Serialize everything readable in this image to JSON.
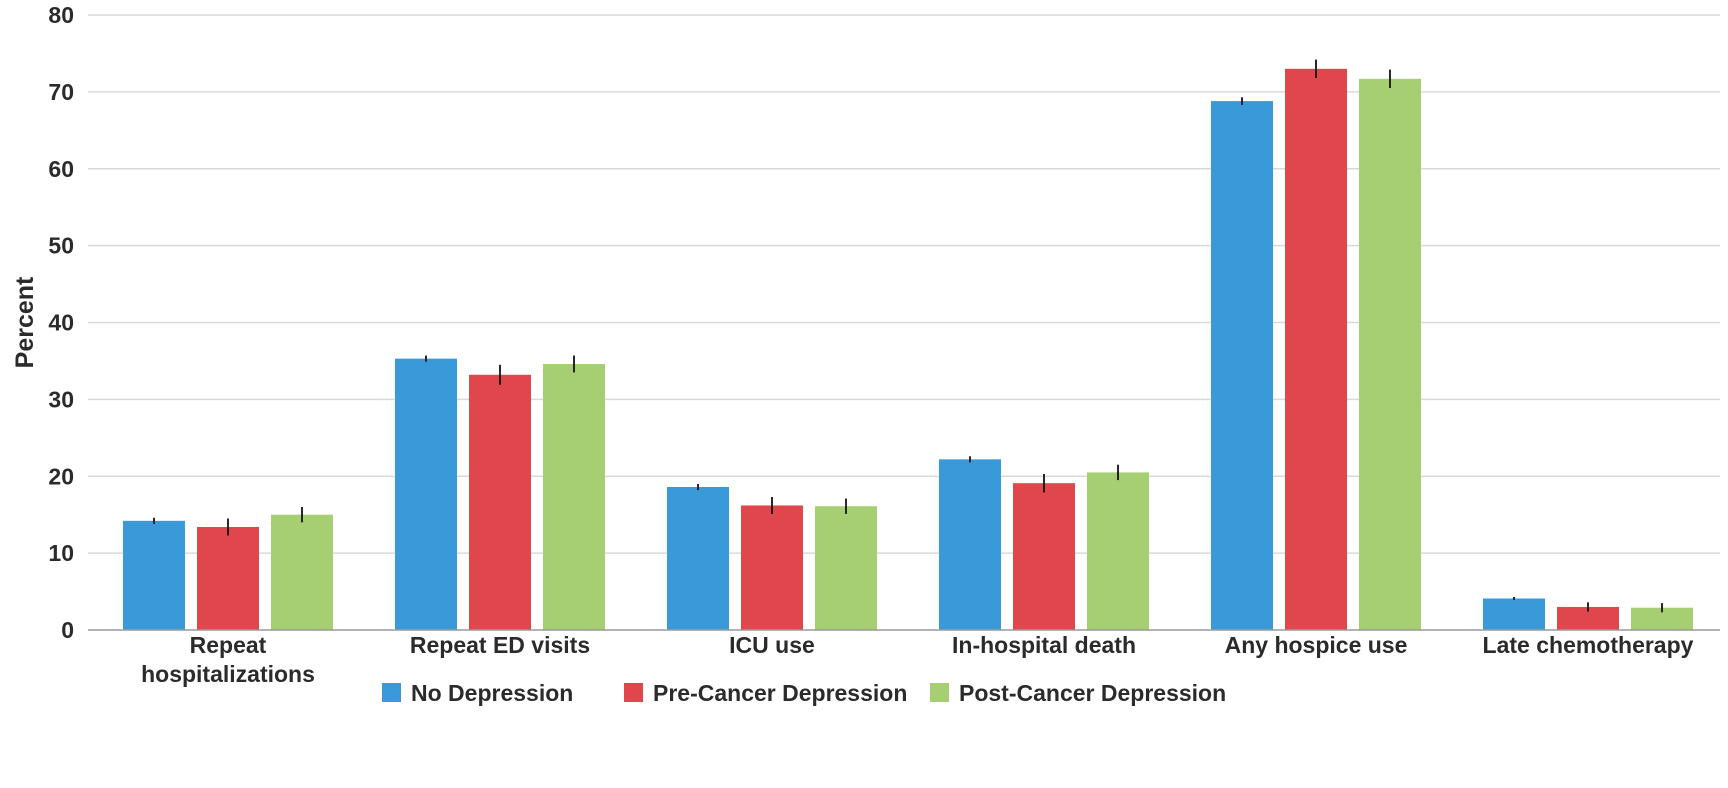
{
  "chart_data": {
    "type": "bar",
    "ylabel": "Percent",
    "xlabel": "",
    "ylim": [
      0,
      80
    ],
    "yticks": [
      0,
      10,
      20,
      30,
      40,
      50,
      60,
      70,
      80
    ],
    "grid": true,
    "legend_position": "bottom",
    "categories": [
      [
        "Repeat",
        "hospitalizations"
      ],
      [
        "Repeat ED visits"
      ],
      [
        "ICU use"
      ],
      [
        "In-hospital death"
      ],
      [
        "Any hospice use"
      ],
      [
        "Late chemotherapy"
      ]
    ],
    "series": [
      {
        "name": "No Depression",
        "color": "#3a9ad9",
        "values": [
          14.2,
          35.3,
          18.6,
          22.2,
          68.8,
          4.1
        ],
        "error": [
          0.4,
          0.4,
          0.4,
          0.4,
          0.5,
          0.2
        ]
      },
      {
        "name": "Pre-Cancer Depression",
        "color": "#e0474c",
        "values": [
          13.4,
          33.2,
          16.2,
          19.1,
          73.0,
          3.0
        ],
        "error": [
          1.1,
          1.3,
          1.1,
          1.2,
          1.2,
          0.6
        ]
      },
      {
        "name": "Post-Cancer Depression",
        "color": "#a6ce72",
        "values": [
          15.0,
          34.6,
          16.1,
          20.5,
          71.7,
          2.9
        ],
        "error": [
          1.0,
          1.1,
          1.0,
          1.0,
          1.2,
          0.6
        ]
      }
    ]
  }
}
